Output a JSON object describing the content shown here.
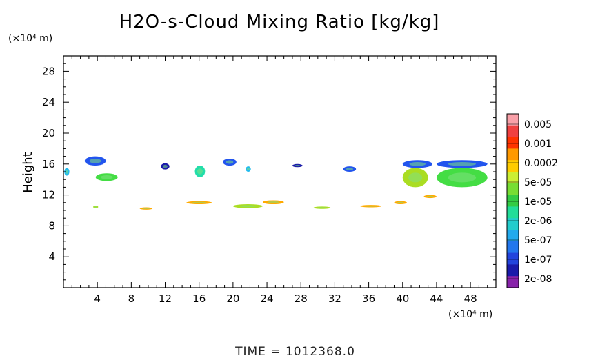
{
  "chart_data": {
    "type": "heatmap",
    "title": "H2O-s-Cloud Mixing Ratio [kg/kg]",
    "ylabel": "Height",
    "y_unit": "(×10⁴ m)",
    "x_unit": "(×10⁴ m)",
    "xlim": [
      0,
      51
    ],
    "ylim": [
      0,
      30
    ],
    "x_ticks": [
      4,
      8,
      12,
      16,
      20,
      24,
      28,
      32,
      36,
      40,
      44,
      48
    ],
    "y_ticks": [
      4,
      8,
      12,
      16,
      20,
      24,
      28
    ],
    "colorbar": {
      "labels": [
        "0.005",
        "0.001",
        "0.0002",
        "5e-05",
        "1e-05",
        "2e-06",
        "5e-07",
        "1e-07",
        "2e-08"
      ],
      "colors": [
        "#f9a0a8",
        "#f04040",
        "#ff3300",
        "#ff9900",
        "#ffcc00",
        "#ccee33",
        "#77dd33",
        "#33cc44",
        "#22dd99",
        "#22cccc",
        "#22aaee",
        "#2277ee",
        "#2244dd",
        "#1a1aaa",
        "#8822aa"
      ]
    },
    "time_label": "TIME = 1012368.0",
    "cloud_regions": [
      {
        "x": 2.5,
        "y": 15.8,
        "w": 2.5,
        "h": 1.2,
        "level": "1e-07"
      },
      {
        "x": 3.8,
        "y": 13.8,
        "w": 2.6,
        "h": 1.0,
        "level": "1e-05"
      },
      {
        "x": 0.1,
        "y": 14.5,
        "w": 0.6,
        "h": 1.0,
        "level": "5e-07"
      },
      {
        "x": 11.5,
        "y": 15.3,
        "w": 1.0,
        "h": 0.8,
        "level": "2e-08"
      },
      {
        "x": 15.5,
        "y": 14.3,
        "w": 1.2,
        "h": 1.5,
        "level": "2e-06"
      },
      {
        "x": 18.8,
        "y": 15.8,
        "w": 1.6,
        "h": 0.9,
        "level": "1e-07"
      },
      {
        "x": 21.5,
        "y": 15.0,
        "w": 0.6,
        "h": 0.7,
        "level": "5e-07"
      },
      {
        "x": 27.0,
        "y": 15.6,
        "w": 1.2,
        "h": 0.4,
        "level": "2e-08"
      },
      {
        "x": 33.0,
        "y": 15.0,
        "w": 1.5,
        "h": 0.7,
        "level": "1e-07"
      },
      {
        "x": 40.0,
        "y": 15.5,
        "w": 3.5,
        "h": 1.0,
        "level": "1e-07"
      },
      {
        "x": 40.0,
        "y": 13.0,
        "w": 3.0,
        "h": 2.5,
        "level": "5e-05"
      },
      {
        "x": 44.0,
        "y": 15.5,
        "w": 6.0,
        "h": 1.0,
        "level": "1e-07"
      },
      {
        "x": 44.0,
        "y": 13.0,
        "w": 6.0,
        "h": 2.5,
        "level": "1e-05"
      },
      {
        "x": 14.5,
        "y": 10.8,
        "w": 3.0,
        "h": 0.4,
        "level": "0.0002"
      },
      {
        "x": 20.0,
        "y": 10.3,
        "w": 3.5,
        "h": 0.5,
        "level": "5e-05"
      },
      {
        "x": 23.5,
        "y": 10.8,
        "w": 2.5,
        "h": 0.5,
        "level": "0.0002"
      },
      {
        "x": 9.0,
        "y": 10.1,
        "w": 1.5,
        "h": 0.3,
        "level": "0.0002"
      },
      {
        "x": 29.5,
        "y": 10.2,
        "w": 2.0,
        "h": 0.3,
        "level": "5e-05"
      },
      {
        "x": 35.0,
        "y": 10.4,
        "w": 2.5,
        "h": 0.3,
        "level": "0.0002"
      },
      {
        "x": 39.0,
        "y": 10.8,
        "w": 1.5,
        "h": 0.4,
        "level": "0.0002"
      },
      {
        "x": 42.5,
        "y": 11.6,
        "w": 1.5,
        "h": 0.4,
        "level": "0.0002"
      },
      {
        "x": 3.5,
        "y": 10.3,
        "w": 0.6,
        "h": 0.3,
        "level": "5e-05"
      }
    ]
  }
}
